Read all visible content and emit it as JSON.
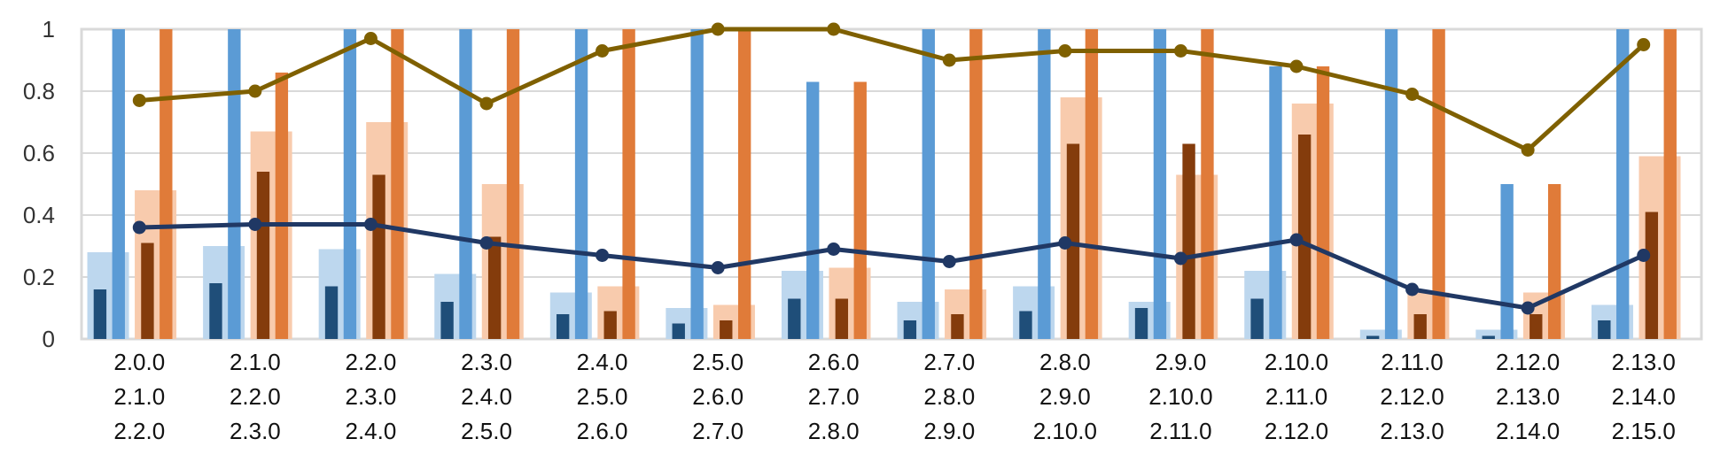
{
  "chart_data": {
    "type": "bar",
    "title": "",
    "xlabel": "",
    "ylabel": "",
    "ylim": [
      0,
      1
    ],
    "yticks": [
      "0",
      "0.2",
      "0.4",
      "0.6",
      "0.8",
      "1"
    ],
    "grid": true,
    "legend": "none",
    "categories": [
      [
        "2.0.0",
        "2.1.0",
        "2.2.0"
      ],
      [
        "2.1.0",
        "2.2.0",
        "2.3.0"
      ],
      [
        "2.2.0",
        "2.3.0",
        "2.4.0"
      ],
      [
        "2.3.0",
        "2.4.0",
        "2.5.0"
      ],
      [
        "2.4.0",
        "2.5.0",
        "2.6.0"
      ],
      [
        "2.5.0",
        "2.6.0",
        "2.7.0"
      ],
      [
        "2.6.0",
        "2.7.0",
        "2.8.0"
      ],
      [
        "2.7.0",
        "2.8.0",
        "2.9.0"
      ],
      [
        "2.8.0",
        "2.9.0",
        "2.10.0"
      ],
      [
        "2.9.0",
        "2.10.0",
        "2.11.0"
      ],
      [
        "2.10.0",
        "2.11.0",
        "2.12.0"
      ],
      [
        "2.11.0",
        "2.12.0",
        "2.13.0"
      ],
      [
        "2.12.0",
        "2.13.0",
        "2.14.0"
      ],
      [
        "2.13.0",
        "2.14.0",
        "2.15.0"
      ]
    ],
    "series": [
      {
        "kind": "bar",
        "group": "blue",
        "role": "light",
        "color": "#BDD7EE",
        "values": [
          0.28,
          0.3,
          0.29,
          0.21,
          0.15,
          0.1,
          0.22,
          0.12,
          0.17,
          0.12,
          0.22,
          0.03,
          0.03,
          0.11
        ]
      },
      {
        "kind": "bar",
        "group": "blue",
        "role": "dark",
        "color": "#1F4E79",
        "values": [
          0.16,
          0.18,
          0.17,
          0.12,
          0.08,
          0.05,
          0.13,
          0.06,
          0.09,
          0.1,
          0.13,
          0.01,
          0.01,
          0.06
        ]
      },
      {
        "kind": "bar",
        "group": "blue",
        "role": "full",
        "color": "#5B9BD5",
        "values": [
          1.0,
          1.0,
          1.0,
          1.0,
          1.0,
          1.0,
          0.83,
          1.0,
          1.0,
          1.0,
          0.88,
          1.0,
          0.5,
          1.0
        ]
      },
      {
        "kind": "bar",
        "group": "orange",
        "role": "light",
        "color": "#F8CBAD",
        "values": [
          0.48,
          0.67,
          0.7,
          0.5,
          0.17,
          0.11,
          0.23,
          0.16,
          0.78,
          0.53,
          0.76,
          0.15,
          0.15,
          0.59
        ]
      },
      {
        "kind": "bar",
        "group": "orange",
        "role": "dark",
        "color": "#843C0C",
        "values": [
          0.31,
          0.54,
          0.53,
          0.33,
          0.09,
          0.06,
          0.13,
          0.08,
          0.63,
          0.63,
          0.66,
          0.08,
          0.08,
          0.41
        ]
      },
      {
        "kind": "bar",
        "group": "orange",
        "role": "full",
        "color": "#E07B39",
        "values": [
          1.0,
          0.86,
          1.0,
          1.0,
          1.0,
          1.0,
          0.83,
          1.0,
          1.0,
          1.0,
          0.88,
          1.0,
          0.5,
          1.0
        ]
      },
      {
        "kind": "line",
        "color": "#7F6000",
        "values": [
          0.77,
          0.8,
          0.97,
          0.76,
          0.93,
          1.0,
          1.0,
          0.9,
          0.93,
          0.93,
          0.88,
          0.79,
          0.61,
          0.95
        ]
      },
      {
        "kind": "line",
        "color": "#203864",
        "values": [
          0.36,
          0.37,
          0.37,
          0.31,
          0.27,
          0.23,
          0.29,
          0.25,
          0.31,
          0.26,
          0.32,
          0.16,
          0.1,
          0.27
        ]
      }
    ]
  }
}
